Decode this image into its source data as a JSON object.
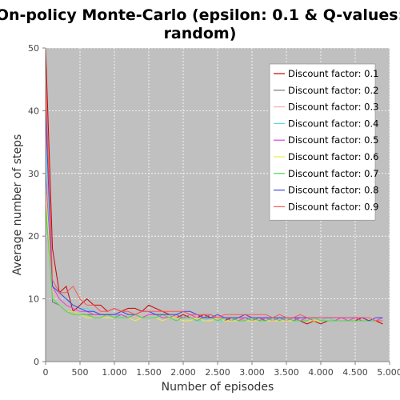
{
  "chart_data": {
    "type": "line",
    "title_lines": [
      "On-policy Monte-Carlo (epsilon: 0.1 & Q-values:",
      "random)"
    ],
    "xlabel": "Number of episodes",
    "ylabel": "Average number of steps",
    "xlim": [
      0,
      5000
    ],
    "ylim": [
      0,
      50
    ],
    "x_ticks": [
      0,
      500,
      1000,
      1500,
      2000,
      2500,
      3000,
      3500,
      4000,
      4500,
      5000
    ],
    "x_tick_labels": [
      "0",
      "500",
      "1.000",
      "1.500",
      "2.000",
      "2.500",
      "3.000",
      "3.500",
      "4.000",
      "4.500",
      "5.000"
    ],
    "y_ticks": [
      0,
      10,
      20,
      30,
      40,
      50
    ],
    "y_tick_labels": [
      "0",
      "10",
      "20",
      "30",
      "40",
      "50"
    ],
    "grid": true,
    "background": "#c0c0c0",
    "legend_position": "top-right",
    "x": [
      0,
      100,
      200,
      300,
      400,
      500,
      600,
      700,
      800,
      900,
      1000,
      1100,
      1200,
      1300,
      1400,
      1500,
      1600,
      1700,
      1800,
      1900,
      2000,
      2100,
      2200,
      2300,
      2400,
      2500,
      2600,
      2700,
      2800,
      2900,
      3000,
      3100,
      3200,
      3300,
      3400,
      3500,
      3600,
      3700,
      3800,
      3900,
      4000,
      4100,
      4200,
      4300,
      4400,
      4500,
      4600,
      4700,
      4800,
      4900
    ],
    "series": [
      {
        "name": "Discount factor: 0.1",
        "color": "#cc0000",
        "values": [
          50,
          18,
          11,
          12,
          8,
          9,
          10,
          9,
          9,
          8,
          8.5,
          8,
          8.5,
          8.5,
          8,
          9,
          8.5,
          8,
          7.5,
          7,
          7.5,
          7,
          7,
          7.5,
          7,
          7,
          6.5,
          7,
          7,
          6.5,
          6.5,
          7,
          6.5,
          6.5,
          6.5,
          6.5,
          6.5,
          6.5,
          6,
          6.5,
          6,
          6.5,
          6.5,
          6.5,
          6.5,
          6.5,
          7,
          6.5,
          6.5,
          6
        ]
      },
      {
        "name": "Discount factor: 0.2",
        "color": "#777777",
        "values": [
          42,
          9.5,
          9,
          8,
          8,
          7.5,
          7.5,
          7.5,
          7.5,
          7.5,
          7,
          7.5,
          7,
          7.5,
          7,
          7.5,
          7.5,
          7,
          7,
          7.5,
          7,
          7,
          6.5,
          7,
          7.5,
          7,
          7,
          6.5,
          7,
          7,
          6.5,
          7,
          6.5,
          7,
          6.5,
          7,
          6.5,
          7,
          6.5,
          6.5,
          6.5,
          7,
          6.5,
          6.5,
          6.5,
          6.5,
          6.5,
          6.5,
          6.5,
          6.5
        ]
      },
      {
        "name": "Discount factor: 0.3",
        "color": "#ffaaaa",
        "values": [
          38,
          11,
          10,
          9,
          8.5,
          8,
          8,
          7.5,
          8,
          7.5,
          7.5,
          7.5,
          7.5,
          7,
          7.5,
          7.5,
          7.5,
          7,
          7.5,
          7,
          7,
          7,
          7,
          7,
          6.5,
          7,
          7,
          7,
          7,
          6.5,
          7,
          7,
          7,
          6.5,
          7,
          6.5,
          7,
          7,
          6.5,
          7,
          6.5,
          6.5,
          6.5,
          7,
          6.5,
          6.5,
          6.5,
          7,
          6.5,
          6.5
        ]
      },
      {
        "name": "Discount factor: 0.4",
        "color": "#55dddd",
        "values": [
          35,
          12,
          11,
          10,
          9,
          8.5,
          8.5,
          8,
          7.5,
          7.5,
          7.5,
          7,
          7.5,
          7.5,
          7,
          7,
          7,
          7.5,
          7,
          6.5,
          7,
          7,
          6.5,
          6.5,
          7,
          6.5,
          6.5,
          6.5,
          6.5,
          6.5,
          6.5,
          6.5,
          6.5,
          6.5,
          7,
          6.5,
          6.5,
          6.5,
          6.5,
          7,
          6.5,
          7,
          6.5,
          6.5,
          6.5,
          6.5,
          6.5,
          6.5,
          6.5,
          6.5
        ]
      },
      {
        "name": "Discount factor: 0.5",
        "color": "#dd44dd",
        "values": [
          30,
          12,
          10,
          9,
          8.5,
          8,
          8,
          7.5,
          7.5,
          7.5,
          7.5,
          7.5,
          7,
          7.5,
          7,
          7.5,
          7.5,
          7,
          7,
          7,
          7,
          7.5,
          7,
          7,
          7,
          7,
          7,
          7,
          6.5,
          7,
          7,
          6.5,
          7,
          6.5,
          7,
          6.5,
          7,
          6.5,
          7,
          6.5,
          6.5,
          6.5,
          6.5,
          7,
          6.5,
          7,
          6.5,
          6.5,
          6.5,
          7
        ]
      },
      {
        "name": "Discount factor: 0.6",
        "color": "#eeee44",
        "values": [
          28,
          10,
          9,
          8,
          8,
          7.5,
          7,
          7,
          7,
          7,
          7,
          7,
          7,
          6.5,
          7,
          7,
          7,
          6.5,
          7,
          7,
          6.5,
          6.5,
          7,
          6.5,
          6.5,
          7,
          6.5,
          6.5,
          6.5,
          6.5,
          6.5,
          6.5,
          6.5,
          6.5,
          6.5,
          6.5,
          6.5,
          6.5,
          6.5,
          6.5,
          6.5,
          6.5,
          6.5,
          6.5,
          6.5,
          6.5,
          6.5,
          6.5,
          6.5,
          6.5
        ]
      },
      {
        "name": "Discount factor: 0.7",
        "color": "#44dd44",
        "values": [
          25,
          10,
          9,
          8,
          7.5,
          7.5,
          7.5,
          7,
          7,
          7.5,
          7,
          7,
          7,
          7.5,
          7,
          7,
          7,
          7.5,
          7,
          6.5,
          7,
          7,
          6.5,
          7,
          7,
          6.5,
          7,
          7,
          6.5,
          6.5,
          7,
          6.5,
          6.5,
          7,
          6.5,
          7,
          6.5,
          6.5,
          6.5,
          7,
          6.5,
          6.5,
          6.5,
          6.5,
          6.5,
          6.5,
          6.5,
          6.5,
          6.5,
          6.5
        ]
      },
      {
        "name": "Discount factor: 0.8",
        "color": "#4444dd",
        "values": [
          40,
          12,
          11,
          10,
          9,
          8.5,
          8,
          8,
          7.5,
          7.5,
          7.5,
          8,
          7.5,
          7.5,
          8,
          8,
          7.5,
          7.5,
          7.5,
          7.5,
          8,
          8,
          7.5,
          7,
          7,
          7.5,
          7,
          7,
          7,
          7.5,
          7,
          7,
          7,
          7,
          7,
          7,
          7,
          7,
          7,
          7,
          7,
          7,
          7,
          7,
          7,
          7,
          7,
          6.5,
          7,
          7
        ]
      },
      {
        "name": "Discount factor: 0.9",
        "color": "#ff5555",
        "values": [
          45,
          13,
          11,
          11,
          12,
          10,
          9,
          9,
          8,
          8,
          8.5,
          8,
          8,
          7.5,
          8,
          8,
          8,
          8,
          8,
          8,
          8,
          7.5,
          7.5,
          7.5,
          7.5,
          7,
          7.5,
          7.5,
          7.5,
          7.5,
          7.5,
          7.5,
          7.5,
          7,
          7.5,
          7,
          7,
          7.5,
          7,
          7,
          7,
          7,
          7,
          7,
          7,
          7,
          7,
          7,
          6.5,
          6.5
        ]
      }
    ]
  }
}
